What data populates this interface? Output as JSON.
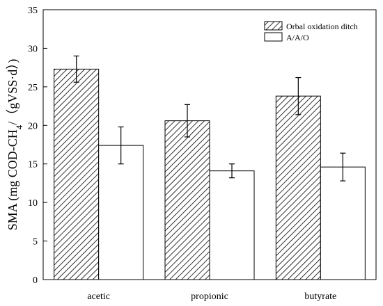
{
  "chart_data": {
    "type": "bar",
    "title": "",
    "xlabel": "",
    "ylabel": "SMA (mg COD-CH4/（gVSS·d）)",
    "ylabel_parts": {
      "prefix": "SMA (mg COD-CH",
      "subscript": "4",
      "suffix": "/（gVSS·d）)"
    },
    "categories": [
      "acetic",
      "propionic",
      "butyrate"
    ],
    "ylim": [
      0,
      35
    ],
    "yticks": [
      "0",
      "5",
      "10",
      "15",
      "20",
      "25",
      "30",
      "35"
    ],
    "legend_position": "top-right",
    "grid": false,
    "series": [
      {
        "name": "Orbal oxidation ditch",
        "pattern": "diagonal-hatch",
        "values": [
          27.3,
          20.6,
          23.8
        ],
        "errors": [
          1.7,
          2.1,
          2.4
        ]
      },
      {
        "name": "A/A/O",
        "pattern": "none",
        "values": [
          17.4,
          14.1,
          14.6
        ],
        "errors": [
          2.4,
          0.9,
          1.8
        ]
      }
    ]
  }
}
